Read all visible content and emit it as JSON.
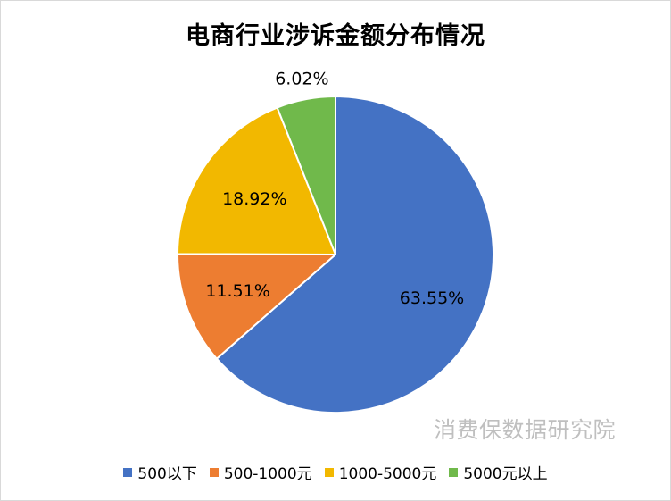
{
  "chart_data": {
    "type": "pie",
    "title": "电商行业涉诉金额分布情况",
    "categories": [
      "500以下",
      "500-1000元",
      "1000-5000元",
      "5000元以上"
    ],
    "values": [
      63.55,
      11.51,
      18.92,
      6.02
    ],
    "labels": [
      "63.55%",
      "11.51%",
      "18.92%",
      "6.02%"
    ],
    "colors": [
      "#4472c4",
      "#ed7d31",
      "#f2b800",
      "#70b94b"
    ],
    "legend_position": "bottom",
    "start_angle": "12 o'clock",
    "direction": "clockwise"
  },
  "watermark": "消费保数据研究院"
}
